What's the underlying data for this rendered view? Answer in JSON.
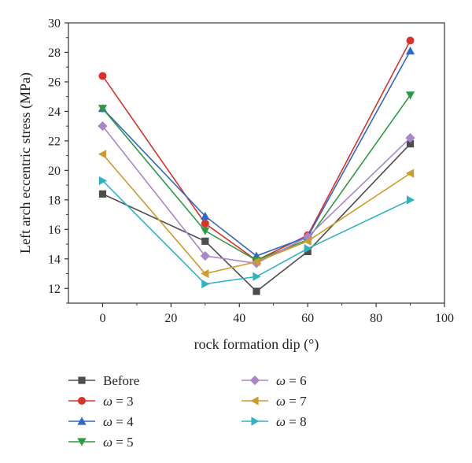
{
  "chart_data": {
    "type": "line",
    "title": "",
    "xlabel": "rock formation dip (°)",
    "ylabel": "Left arch eccentric stress (MPa)",
    "xlim": [
      -10,
      100
    ],
    "ylim": [
      11,
      30
    ],
    "xticks": [
      0,
      20,
      40,
      60,
      80,
      100
    ],
    "yticks": [
      12,
      14,
      16,
      18,
      20,
      22,
      24,
      26,
      28,
      30
    ],
    "x": [
      0,
      30,
      45,
      60,
      90
    ],
    "grid": false,
    "legend_position": "bottom",
    "series": [
      {
        "name": "Before",
        "values": [
          18.4,
          15.2,
          11.8,
          14.5,
          21.8
        ],
        "color": "#4d4d4d",
        "marker": "square"
      },
      {
        "name": "ω = 3",
        "values": [
          26.4,
          16.4,
          13.9,
          15.6,
          28.8
        ],
        "color": "#d8322a",
        "marker": "circle"
      },
      {
        "name": "ω = 4",
        "values": [
          24.2,
          16.9,
          14.2,
          15.5,
          28.1
        ],
        "color": "#3367c4",
        "marker": "triangle-up"
      },
      {
        "name": "ω = 5",
        "values": [
          24.2,
          15.9,
          13.9,
          15.3,
          25.1
        ],
        "color": "#2e9a45",
        "marker": "triangle-down"
      },
      {
        "name": "ω = 6",
        "values": [
          23.0,
          14.2,
          13.7,
          15.5,
          22.2
        ],
        "color": "#a985c9",
        "marker": "diamond"
      },
      {
        "name": "ω = 7",
        "values": [
          21.1,
          13.0,
          13.8,
          15.2,
          19.8
        ],
        "color": "#cf9a2a",
        "marker": "triangle-left"
      },
      {
        "name": "ω = 8",
        "values": [
          19.3,
          12.3,
          12.8,
          14.7,
          18.0
        ],
        "color": "#2fb3c0",
        "marker": "triangle-right"
      }
    ]
  }
}
